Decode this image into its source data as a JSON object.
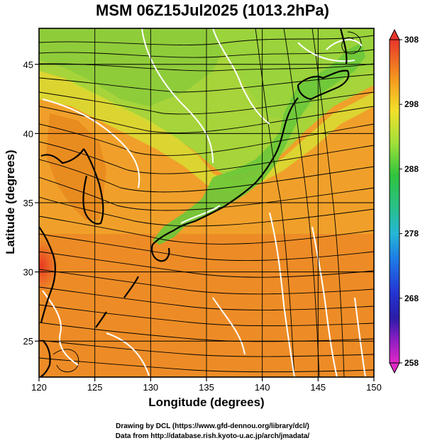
{
  "title": "MSM 06Z15Jul2025 (1013.2hPa)",
  "xlabel": "Longitude (degrees)",
  "ylabel": "Latitude  (degrees)",
  "credits": {
    "line1": "Drawing by DCL (https://www.gfd-dennou.org/library/dcl/)",
    "line2": "Data from http://database.rish.kyoto-u.ac.jp/arch/jmadata/"
  },
  "map": {
    "xlim": [
      120,
      150
    ],
    "ylim": [
      22.4,
      47.6
    ],
    "xticks": [
      120,
      125,
      130,
      135,
      140,
      145,
      150
    ],
    "yticks": [
      25,
      30,
      35,
      40,
      45
    ],
    "grid": true
  },
  "colorbar": {
    "min": 258,
    "max": 308,
    "labels": [
      308,
      298,
      288,
      278,
      268,
      258
    ]
  },
  "colors": {
    "land_outline": "#000000",
    "contour": "#ffffff",
    "streamline": "#000000"
  }
}
